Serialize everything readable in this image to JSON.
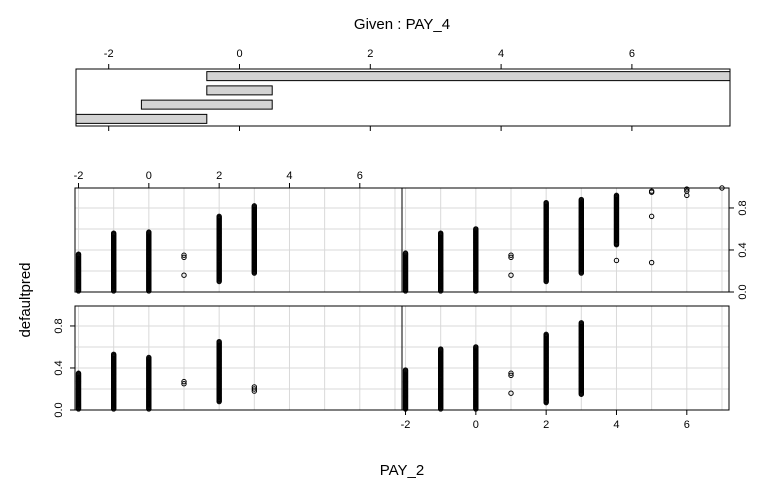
{
  "chart_data": {
    "type": "scatter",
    "title": "Given : PAY_4",
    "xlabel": "PAY_2",
    "ylabel": "defaultpred",
    "given": {
      "variable": "PAY_4",
      "axis_range": [
        -2.5,
        7.5
      ],
      "ticks": [
        -2,
        0,
        2,
        4,
        6
      ],
      "intervals": [
        [
          -2.5,
          -0.5
        ],
        [
          -1.5,
          0.5
        ],
        [
          -0.5,
          0.5
        ],
        [
          -0.5,
          7.5
        ]
      ]
    },
    "x_ticks": [
      -2,
      0,
      2,
      4,
      6
    ],
    "y_ticks": [
      0.0,
      0.4,
      0.8
    ],
    "xlim": [
      -2.1,
      7.2
    ],
    "ylim": [
      0.0,
      0.99
    ],
    "panels": [
      {
        "name": "PAY_4 in [-2.5, -0.5]",
        "points": [
          {
            "x": -2,
            "ymin": 0.01,
            "ymax": 0.35
          },
          {
            "x": -1,
            "ymin": 0.01,
            "ymax": 0.53
          },
          {
            "x": 0,
            "ymin": 0.01,
            "ymax": 0.5
          },
          {
            "x": 1,
            "values": [
              0.25,
              0.27
            ]
          },
          {
            "x": 2,
            "ymin": 0.08,
            "ymax": 0.65
          },
          {
            "x": 3,
            "values": [
              0.18,
              0.2,
              0.22
            ]
          }
        ]
      },
      {
        "name": "PAY_4 in [-1.5, 0.5]",
        "points": [
          {
            "x": -2,
            "ymin": 0.01,
            "ymax": 0.38
          },
          {
            "x": -1,
            "ymin": 0.01,
            "ymax": 0.58
          },
          {
            "x": 0,
            "ymin": 0.01,
            "ymax": 0.6
          },
          {
            "x": 1,
            "values": [
              0.16,
              0.33,
              0.35
            ]
          },
          {
            "x": 2,
            "ymin": 0.07,
            "ymax": 0.72
          },
          {
            "x": 3,
            "ymin": 0.15,
            "ymax": 0.83
          }
        ]
      },
      {
        "name": "PAY_4 in [-0.5, 0.5]",
        "points": [
          {
            "x": -2,
            "ymin": 0.01,
            "ymax": 0.36
          },
          {
            "x": -1,
            "ymin": 0.01,
            "ymax": 0.56
          },
          {
            "x": 0,
            "ymin": 0.01,
            "ymax": 0.57
          },
          {
            "x": 1,
            "values": [
              0.16,
              0.33,
              0.35
            ]
          },
          {
            "x": 2,
            "ymin": 0.1,
            "ymax": 0.72
          },
          {
            "x": 3,
            "ymin": 0.18,
            "ymax": 0.82
          }
        ]
      },
      {
        "name": "PAY_4 in [-0.5, 7.5]",
        "points": [
          {
            "x": -2,
            "ymin": 0.01,
            "ymax": 0.37
          },
          {
            "x": -1,
            "ymin": 0.01,
            "ymax": 0.56
          },
          {
            "x": 0,
            "ymin": 0.01,
            "ymax": 0.6
          },
          {
            "x": 1,
            "values": [
              0.16,
              0.33,
              0.35
            ]
          },
          {
            "x": 2,
            "ymin": 0.1,
            "ymax": 0.85
          },
          {
            "x": 3,
            "ymin": 0.18,
            "ymax": 0.88
          },
          {
            "x": 4,
            "ymin": 0.45,
            "ymax": 0.92,
            "extra": [
              0.3
            ]
          },
          {
            "x": 5,
            "values": [
              0.28,
              0.72,
              0.95,
              0.96
            ]
          },
          {
            "x": 6,
            "values": [
              0.92,
              0.96,
              0.98
            ]
          },
          {
            "x": 7,
            "values": [
              0.99
            ]
          }
        ]
      }
    ]
  }
}
